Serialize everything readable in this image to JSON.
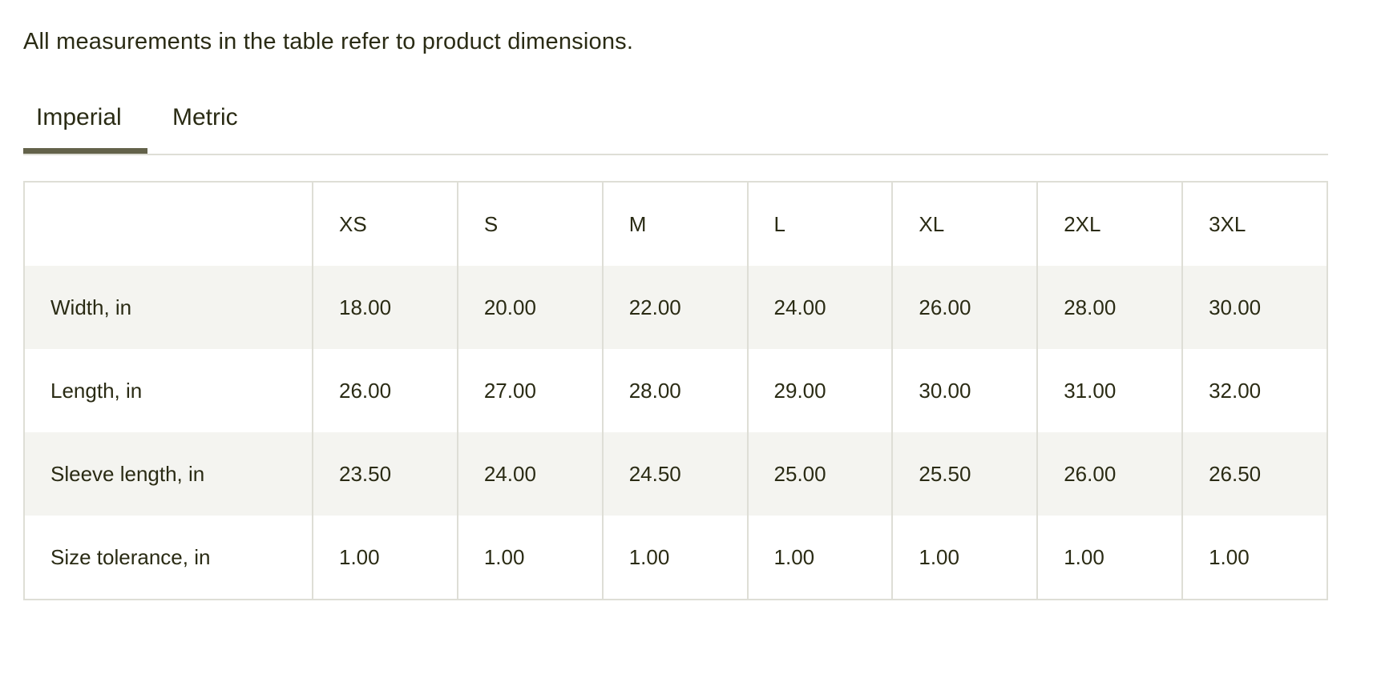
{
  "intro_text": "All measurements in the table refer to product dimensions.",
  "tabs": [
    {
      "label": "Imperial",
      "active": true
    },
    {
      "label": "Metric",
      "active": false
    }
  ],
  "table": {
    "headers": [
      "",
      "XS",
      "S",
      "M",
      "L",
      "XL",
      "2XL",
      "3XL"
    ],
    "rows": [
      {
        "label": "Width, in",
        "values": [
          "18.00",
          "20.00",
          "22.00",
          "24.00",
          "26.00",
          "28.00",
          "30.00"
        ]
      },
      {
        "label": "Length, in",
        "values": [
          "26.00",
          "27.00",
          "28.00",
          "29.00",
          "30.00",
          "31.00",
          "32.00"
        ]
      },
      {
        "label": "Sleeve length, in",
        "values": [
          "23.50",
          "24.00",
          "24.50",
          "25.00",
          "25.50",
          "26.00",
          "26.50"
        ]
      },
      {
        "label": "Size tolerance, in",
        "values": [
          "1.00",
          "1.00",
          "1.00",
          "1.00",
          "1.00",
          "1.00",
          "1.00"
        ]
      }
    ]
  },
  "colors": {
    "text": "#2a2b14",
    "accent": "#63624a",
    "border": "#deded6",
    "row_alt": "#f4f4f0"
  }
}
